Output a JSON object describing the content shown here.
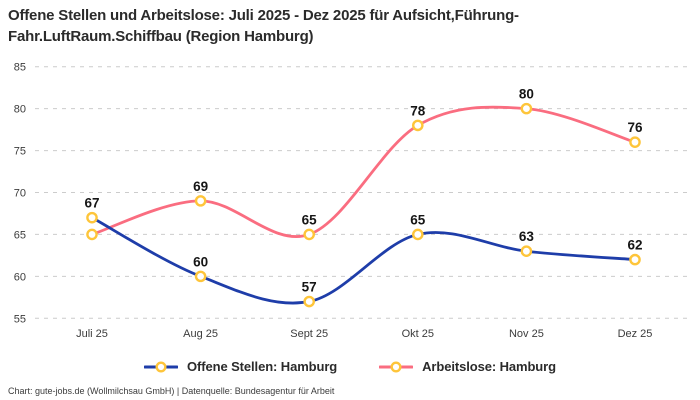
{
  "title": {
    "line1": "Offene Stellen und Arbeitslose: Juli 2025 - Dez 2025 für Aufsicht,Führung-",
    "line2": "Fahr.LuftRaum.Schiffbau (Region Hamburg)"
  },
  "chart_data": {
    "type": "line",
    "title": "Offene Stellen und Arbeitslose: Juli 2025 - Dez 2025 für Aufsicht,Führung-Fahr.LuftRaum.Schiffbau (Region Hamburg)",
    "categories": [
      "Juli 25",
      "Aug 25",
      "Sept 25",
      "Okt 25",
      "Nov 25",
      "Dez 25"
    ],
    "series": [
      {
        "name": "Offene Stellen: Hamburg",
        "color": "#1e3da9",
        "values": [
          67,
          60,
          57,
          65,
          63,
          62
        ],
        "data_labels": [
          "67",
          "60",
          "57",
          "65",
          "63",
          "62"
        ]
      },
      {
        "name": "Arbeitslose: Hamburg",
        "color": "#fa6d80",
        "values": [
          65,
          69,
          65,
          78,
          80,
          76
        ],
        "data_labels": [
          "",
          "69",
          "65",
          "78",
          "80",
          "76"
        ]
      }
    ],
    "marker": {
      "fill": "#ffffff",
      "stroke": "#fec53a"
    },
    "y_ticks": [
      55,
      60,
      65,
      70,
      75,
      80,
      85
    ],
    "ylim": [
      55,
      85
    ],
    "xlabel": "",
    "ylabel": "",
    "grid": "horizontal-dashed",
    "grid_color": "#cccccc",
    "legend_position": "bottom",
    "curve": "smooth"
  },
  "legend": {
    "items": [
      {
        "label": "Offene Stellen: Hamburg"
      },
      {
        "label": "Arbeitslose: Hamburg"
      }
    ]
  },
  "footer": {
    "text": "Chart: gute-jobs.de (Wollmilchsau GmbH) | Datenquelle: Bundesagentur für Arbeit"
  }
}
